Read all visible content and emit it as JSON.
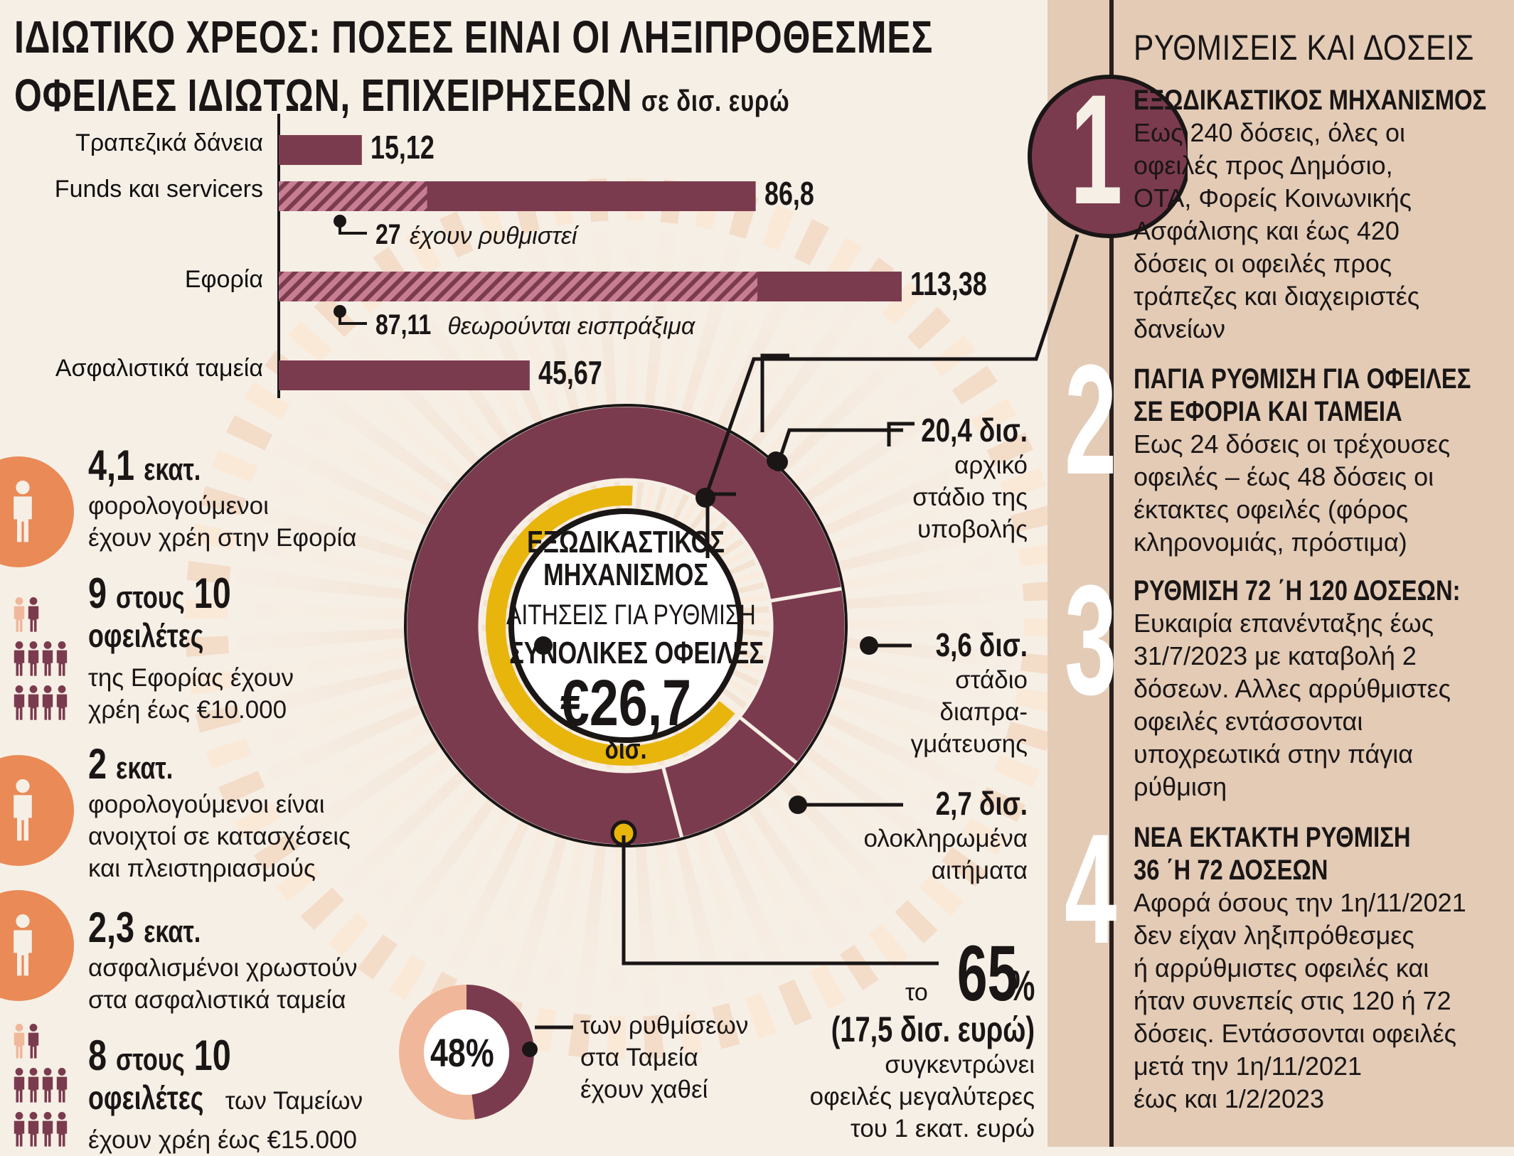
{
  "title": {
    "line1": "ΙΔΙΩΤΙΚΟ ΧΡΕΟΣ: ΠΟΣΕΣ ΕΙΝΑΙ ΟΙ ΛΗΞΙΠΡΟΘΕΣΜΕΣ",
    "line2": "ΟΦΕΙΛΕΣ ΙΔΙΩΤΩΝ, ΕΠΙΧΕΙΡΗΣΕΩΝ",
    "unit": "σε δισ. ευρώ"
  },
  "colors": {
    "bar": "#7b3b4e",
    "accent": "#e7b50c",
    "orange": "#e98a57",
    "light_orange": "#f0b79a",
    "panel": "#e3cbb6"
  },
  "chart_data": [
    {
      "type": "bar",
      "orientation": "horizontal",
      "categories": [
        "Τραπεζικά δάνεια",
        "Funds και servicers",
        "Εφορία",
        "Ασφαλιστικά ταμεία"
      ],
      "values": [
        15.12,
        86.8,
        113.38,
        45.67
      ],
      "value_labels": [
        "15,12",
        "86,8",
        "113,38",
        "45,67"
      ],
      "hatched_portion": [
        0,
        27,
        87.11,
        0
      ],
      "notes": [
        {
          "bold": "27",
          "italic": "έχουν ρυθμιστεί"
        },
        {
          "bold": "87,11",
          "italic": "θεωρούνται εισπράξιμα"
        }
      ]
    },
    {
      "type": "pie",
      "variant": "donut",
      "slices": [
        {
          "value": 20.4,
          "label": "20,4 δισ.",
          "text": [
            "αρχικό",
            "στάδιο της",
            "υποβολής"
          ]
        },
        {
          "value": 3.6,
          "label": "3,6 δισ.",
          "text": [
            "στάδιο",
            "διαπρα-",
            "γμάτευσης"
          ]
        },
        {
          "value": 2.7,
          "label": "2,7 δισ.",
          "text": [
            "ολοκληρωμένα",
            "αιτήματα"
          ]
        }
      ],
      "inner_arc_percent": 65,
      "center": {
        "line1": "ΕΞΩΔΙΚΑΣΤΙΚΟΣ",
        "line2": "ΜΗΧΑΝΙΣΜΟΣ",
        "line3": "ΑΙΤΗΣΕΙΣ ΓΙΑ ΡΥΘΜΙΣΗ",
        "line4": "ΣΥΝΟΛΙΚΕΣ ΟΦΕΙΛΕΣ",
        "value": "€26,7",
        "unit": "δισ."
      }
    },
    {
      "type": "pie",
      "variant": "donut",
      "slices": [
        {
          "value": 48,
          "label": "48%"
        },
        {
          "value": 52,
          "label": ""
        }
      ],
      "text": [
        "των ρυθμίσεων",
        "στα Ταμεία",
        "έχουν χαθεί"
      ]
    }
  ],
  "share65": {
    "pre": "το",
    "value": "65",
    "pct": "%",
    "amount": "(17,5 δισ. ευρώ)",
    "lines": [
      "συγκεντρώνει",
      "οφειλές μεγαλύτερες",
      "του 1 εκατ. ευρώ"
    ]
  },
  "stats": [
    {
      "num": "4,1",
      "unit": "εκατ.",
      "lines": [
        "φορολογούμενοι",
        "έχουν χρέη στην Εφορία"
      ]
    },
    {
      "num": "9",
      "mid": "στους",
      "num2": "10",
      "bold2": "οφειλέτες",
      "lines": [
        "της Εφορίας έχουν",
        "χρέη έως €10.000"
      ]
    },
    {
      "num": "2",
      "unit": "εκατ.",
      "lines": [
        "φορολογούμενοι είναι",
        "ανοιχτοί σε κατασχέσεις",
        "και πλειστηριασμούς"
      ]
    },
    {
      "num": "2,3",
      "unit": "εκατ.",
      "lines": [
        "ασφαλισμένοι χρωστούν",
        "στα ασφαλιστικά ταμεία"
      ]
    },
    {
      "num": "8",
      "mid": "στους",
      "num2": "10",
      "bold2": "οφειλέτες",
      "tail": "των Ταμείων",
      "lines": [
        "έχουν χρέη έως €15.000"
      ]
    }
  ],
  "right": {
    "title": "ΡΥΘΜΙΣΕΙΣ ΚΑΙ ΔΟΣΕΙΣ",
    "items": [
      {
        "num": "1",
        "head": [
          "ΕΞΩΔΙΚΑΣΤΙΚΟΣ ΜΗΧΑΝΙΣΜΟΣ"
        ],
        "lines": [
          "Εως 240 δόσεις, όλες οι",
          "οφειλές προς Δημόσιο,",
          "ΟΤΑ, Φορείς Κοινωνικής",
          "Ασφάλισης και έως 420",
          "δόσεις οι οφειλές προς",
          "τράπεζες και διαχειριστές",
          "δανείων"
        ]
      },
      {
        "num": "2",
        "head": [
          "ΠΑΓΙΑ ΡΥΘΜΙΣΗ ΓΙΑ ΟΦΕΙΛΕΣ",
          "ΣΕ ΕΦΟΡΙΑ ΚΑΙ ΤΑΜΕΙΑ"
        ],
        "lines": [
          "Εως 24 δόσεις οι τρέχουσες",
          "οφειλές – έως 48 δόσεις οι",
          "έκτακτες οφειλές (φόρος",
          "κληρονομιάς, πρόστιμα)"
        ]
      },
      {
        "num": "3",
        "head": [
          "ΡΥΘΜΙΣΗ 72 ΄Η 120 ΔΟΣΕΩΝ:"
        ],
        "lines": [
          "Ευκαιρία επανένταξης έως",
          "31/7/2023 με καταβολή 2",
          "δόσεων. Αλλες αρρύθμιστες",
          "οφειλές εντάσσονται",
          "υποχρεωτικά στην πάγια",
          "ρύθμιση"
        ]
      },
      {
        "num": "4",
        "head": [
          "ΝΕΑ ΕΚΤΑΚΤΗ ΡΥΘΜΙΣΗ",
          "36 ΄Η 72 ΔΟΣΕΩΝ"
        ],
        "lines": [
          "Αφορά όσους την 1η/11/2021",
          "δεν είχαν ληξιπρόθεσμες",
          "ή αρρύθμιστες οφειλές και",
          "ήταν συνεπείς στις 120 ή 72",
          "δόσεις. Εντάσσονται οφειλές",
          "μετά την 1η/11/2021",
          "έως και 1/2/2023"
        ]
      }
    ]
  }
}
